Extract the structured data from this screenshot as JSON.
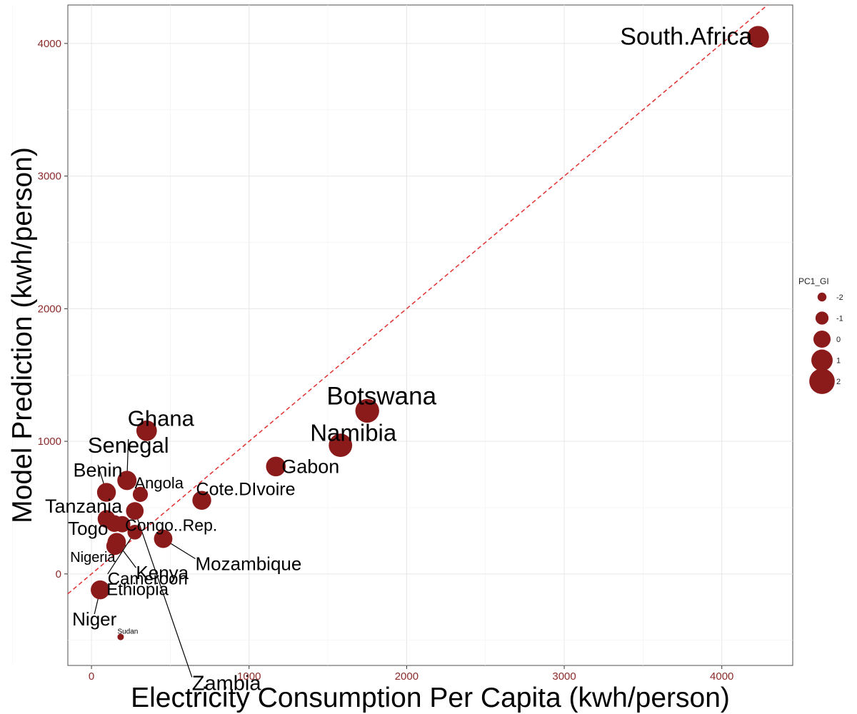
{
  "chart_data": {
    "type": "scatter",
    "title": "",
    "xlabel": "Electricity Consumption Per Capita (kwh/person)",
    "ylabel": "Model Prediction (kwh/person)",
    "xlim": [
      -150,
      4450
    ],
    "ylim": [
      -690,
      4290
    ],
    "x_ticks": [
      0,
      1000,
      2000,
      3000,
      4000
    ],
    "y_ticks": [
      0,
      1000,
      2000,
      3000,
      4000
    ],
    "grid": true,
    "reference_line": {
      "type": "identity",
      "style": "dashed",
      "color": "#e03030"
    },
    "point_color": "#8b1a1a",
    "legend": {
      "title": "PC1_GI",
      "placement": "right",
      "entries": [
        {
          "label": "-2",
          "value": -2
        },
        {
          "label": "-1",
          "value": -1
        },
        {
          "label": "0",
          "value": 0
        },
        {
          "label": "1",
          "value": 1
        },
        {
          "label": "2",
          "value": 2
        }
      ]
    },
    "points": [
      {
        "name": "South.Africa",
        "x": 4230,
        "y": 4050,
        "size": 1.1
      },
      {
        "name": "Botswana",
        "x": 1750,
        "y": 1230,
        "size": 1.6
      },
      {
        "name": "Namibia",
        "x": 1580,
        "y": 970,
        "size": 1.5
      },
      {
        "name": "Gabon",
        "x": 1170,
        "y": 810,
        "size": 0.6
      },
      {
        "name": "Ghana",
        "x": 350,
        "y": 1080,
        "size": 0.8
      },
      {
        "name": "Senegal",
        "x": 225,
        "y": 705,
        "size": 0.5
      },
      {
        "name": "Benin",
        "x": 95,
        "y": 615,
        "size": 0.4
      },
      {
        "name": "Angola",
        "x": 310,
        "y": 600,
        "size": -0.5
      },
      {
        "name": "Cote.DIvoire",
        "x": 700,
        "y": 555,
        "size": 0.4
      },
      {
        "name": "Zambia",
        "x": 275,
        "y": 475,
        "size": 0.1
      },
      {
        "name": "Tanzania",
        "x": 95,
        "y": 415,
        "size": 0.1
      },
      {
        "name": "Congo..Rep.",
        "x": 195,
        "y": 375,
        "size": -0.2
      },
      {
        "name": "Cameroon",
        "x": 275,
        "y": 315,
        "size": -0.6
      },
      {
        "name": "Togo",
        "x": 145,
        "y": 380,
        "size": -0.1
      },
      {
        "name": "Mozambique",
        "x": 455,
        "y": 265,
        "size": 0.3
      },
      {
        "name": "Kenya",
        "x": 160,
        "y": 240,
        "size": 0.3
      },
      {
        "name": "Nigeria",
        "x": 150,
        "y": 210,
        "size": 0.1
      },
      {
        "name": "Ethiopia",
        "x": 55,
        "y": -120,
        "size": 0.4
      },
      {
        "name": "Niger",
        "x": 55,
        "y": -120,
        "size": 0.4
      },
      {
        "name": "Sudan",
        "x": 185,
        "y": -475,
        "size": -2.6
      }
    ]
  }
}
